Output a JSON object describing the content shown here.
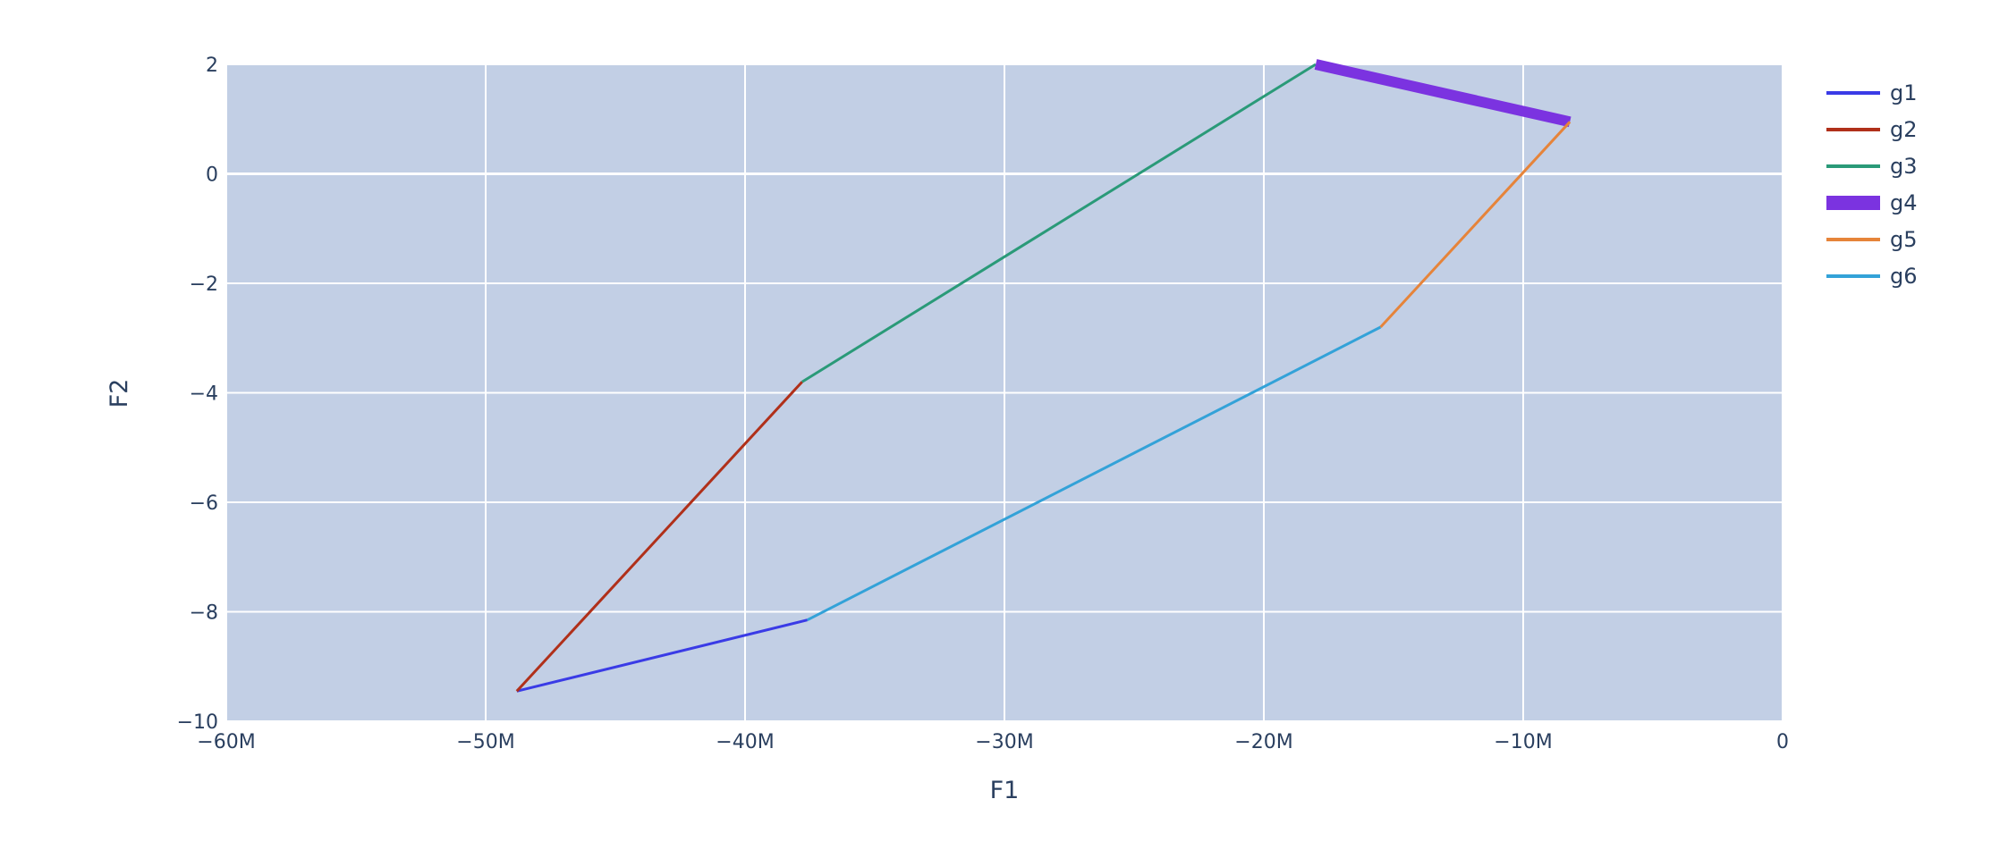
{
  "chart_data": {
    "type": "line",
    "xlabel": "F1",
    "ylabel": "F2",
    "xlim": [
      -60000000,
      0
    ],
    "ylim": [
      -10,
      2
    ],
    "grid": true,
    "legend_position": "right",
    "plot_background": "#c2cfe5",
    "x_ticks": [
      {
        "value": -60000000,
        "label": "−60M"
      },
      {
        "value": -50000000,
        "label": "−50M"
      },
      {
        "value": -40000000,
        "label": "−40M"
      },
      {
        "value": -30000000,
        "label": "−30M"
      },
      {
        "value": -20000000,
        "label": "−20M"
      },
      {
        "value": -10000000,
        "label": "−10M"
      },
      {
        "value": 0,
        "label": "0"
      }
    ],
    "y_ticks": [
      {
        "value": 2,
        "label": "2"
      },
      {
        "value": 0,
        "label": "0"
      },
      {
        "value": -2,
        "label": "−2"
      },
      {
        "value": -4,
        "label": "−4"
      },
      {
        "value": -6,
        "label": "−6"
      },
      {
        "value": -8,
        "label": "−8"
      },
      {
        "value": -10,
        "label": "−10"
      }
    ],
    "series": [
      {
        "name": "g1",
        "color": "#3a3be6",
        "width": 3,
        "x": [
          -37600000,
          -48800000
        ],
        "y": [
          -8.15,
          -9.45
        ]
      },
      {
        "name": "g2",
        "color": "#b0301a",
        "width": 3,
        "x": [
          -48800000,
          -37800000
        ],
        "y": [
          -9.45,
          -3.8
        ]
      },
      {
        "name": "g3",
        "color": "#2a9a78",
        "width": 3,
        "x": [
          -37800000,
          -18000000
        ],
        "y": [
          -3.8,
          2.0
        ]
      },
      {
        "name": "g4",
        "color": "#7b33e0",
        "width": 12,
        "x": [
          -18000000,
          -8200000
        ],
        "y": [
          2.0,
          0.95
        ]
      },
      {
        "name": "g5",
        "color": "#e6843a",
        "width": 3,
        "x": [
          -8200000,
          -15500000
        ],
        "y": [
          0.95,
          -2.8
        ]
      },
      {
        "name": "g6",
        "color": "#33a2d8",
        "width": 3,
        "x": [
          -15500000,
          -37600000
        ],
        "y": [
          -2.8,
          -8.15
        ]
      }
    ]
  }
}
